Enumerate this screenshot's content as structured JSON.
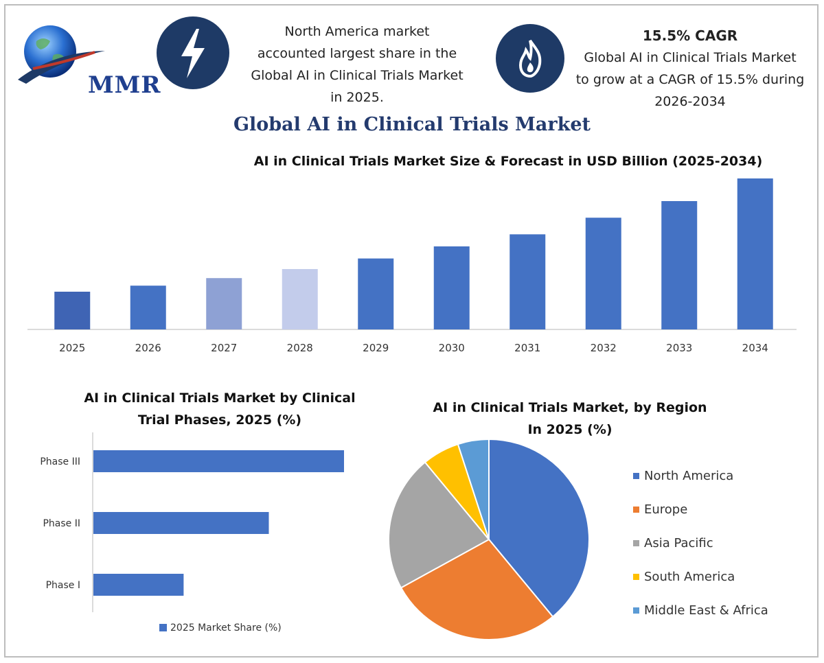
{
  "brand": {
    "logo_text": "MMR"
  },
  "info_boxes": [
    {
      "icon": "lightning-icon",
      "text_lines": [
        "North America market",
        "accounted largest share in the",
        "Global AI in Clinical Trials Market",
        "in 2025."
      ]
    },
    {
      "icon": "flame-icon",
      "title": "15.5% CAGR",
      "text_lines": [
        "Global AI in Clinical Trials Market",
        "to grow at a CAGR of 15.5% during",
        "2026-2034"
      ]
    }
  ],
  "main_title": "Global AI in Clinical Trials Market",
  "chart_data": [
    {
      "type": "bar",
      "title": "AI in Clinical Trials Market Size & Forecast in USD Billion (2025-2034)",
      "categories": [
        "2025",
        "2026",
        "2027",
        "2028",
        "2029",
        "2030",
        "2031",
        "2032",
        "2033",
        "2034"
      ],
      "values": [
        2.5,
        2.9,
        3.4,
        4.0,
        4.7,
        5.5,
        6.3,
        7.4,
        8.5,
        10.0
      ],
      "colors": [
        "#3f64b4",
        "#4472c4",
        "#8ea1d4",
        "#c3cceb",
        "#4472c4",
        "#4472c4",
        "#4472c4",
        "#4472c4",
        "#4472c4",
        "#4472c4"
      ],
      "ylim": [
        0,
        10
      ]
    },
    {
      "type": "bar",
      "orientation": "horizontal",
      "title_lines": [
        "AI in Clinical Trials Market by Clinical",
        "Trial Phases, 2025 (%)"
      ],
      "categories": [
        "Phase III",
        "Phase II",
        "Phase I"
      ],
      "series": [
        {
          "name": "2025 Market Share (%)",
          "values": [
            50,
            35,
            18
          ]
        }
      ],
      "color": "#4472c4",
      "xlim": [
        0,
        60
      ],
      "legend": "bottom"
    },
    {
      "type": "pie",
      "title_lines": [
        "AI in Clinical Trials Market, by Region",
        "In 2025 (%)"
      ],
      "labels": [
        "North America",
        "Europe",
        "Asia Pacific",
        "South America",
        "Middle East & Africa"
      ],
      "values": [
        39,
        28,
        22,
        6,
        5
      ],
      "colors": [
        "#4472c4",
        "#ed7d31",
        "#a5a5a5",
        "#ffc000",
        "#5b9bd5"
      ],
      "legend": "right"
    }
  ]
}
